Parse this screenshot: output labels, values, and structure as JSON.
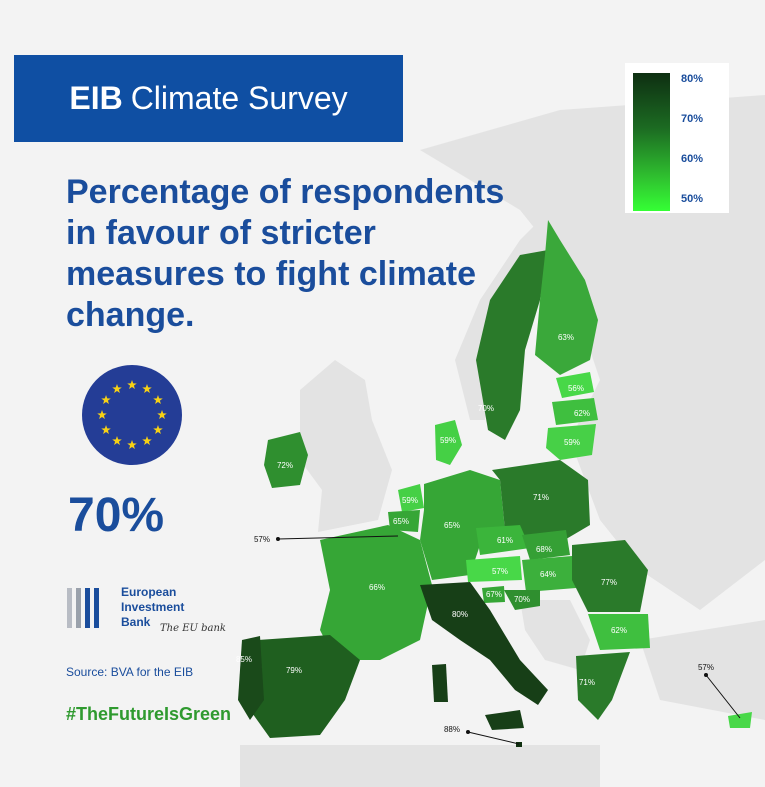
{
  "banner": {
    "title_bold": "EIB",
    "title_rest": "Climate Survey"
  },
  "headline": "Percentage of respondents in favour of stricter measures to fight climate change.",
  "eu_average": "70%",
  "branding": {
    "org_lines": [
      "European",
      "Investment",
      "Bank"
    ],
    "tagline": "The EU bank",
    "source": "Source: BVA for the EIB",
    "hashtag": "#TheFutureIsGreen"
  },
  "legend": {
    "labels": [
      "80%",
      "70%",
      "60%",
      "50%"
    ]
  },
  "colors": {
    "brand_blue": "#0f4fa3",
    "text_blue": "#1a4d9c",
    "hashtag_green": "#2f9a2f",
    "flag_blue": "#243d96",
    "flag_star": "#f7d115"
  },
  "countries": [
    {
      "name": "Ireland",
      "value": "72%",
      "label": "72%"
    },
    {
      "name": "Sweden",
      "value": "70%",
      "label": "70%"
    },
    {
      "name": "Finland",
      "value": "63%",
      "label": "63%"
    },
    {
      "name": "Estonia",
      "value": "56%",
      "label": "56%"
    },
    {
      "name": "Latvia",
      "value": "62%",
      "label": "62%"
    },
    {
      "name": "Lithuania",
      "value": "59%",
      "label": "59%"
    },
    {
      "name": "Denmark",
      "value": "59%",
      "label": "59%"
    },
    {
      "name": "Netherlands",
      "value": "59%",
      "label": "59%"
    },
    {
      "name": "Belgium",
      "value": "65%",
      "label": "65%"
    },
    {
      "name": "Luxembourg",
      "value": "57%",
      "label": "57%"
    },
    {
      "name": "Germany",
      "value": "65%",
      "label": "65%"
    },
    {
      "name": "Poland",
      "value": "71%",
      "label": "71%"
    },
    {
      "name": "Czechia",
      "value": "61%",
      "label": "61%"
    },
    {
      "name": "Slovakia",
      "value": "68%",
      "label": "68%"
    },
    {
      "name": "Austria",
      "value": "57%",
      "label": "57%"
    },
    {
      "name": "Hungary",
      "value": "64%",
      "label": "64%"
    },
    {
      "name": "Romania",
      "value": "77%",
      "label": "77%"
    },
    {
      "name": "Bulgaria",
      "value": "62%",
      "label": "62%"
    },
    {
      "name": "Slovenia",
      "value": "67%",
      "label": "67%"
    },
    {
      "name": "Croatia",
      "value": "70%",
      "label": "70%"
    },
    {
      "name": "France",
      "value": "66%",
      "label": "66%"
    },
    {
      "name": "Italy",
      "value": "80%",
      "label": "80%"
    },
    {
      "name": "Spain",
      "value": "79%",
      "label": "79%"
    },
    {
      "name": "Portugal",
      "value": "85%",
      "label": "85%"
    },
    {
      "name": "Greece",
      "value": "71%",
      "label": "71%"
    },
    {
      "name": "Malta",
      "value": "88%",
      "label": "88%"
    },
    {
      "name": "Cyprus",
      "value": "57%",
      "label": "57%"
    }
  ]
}
